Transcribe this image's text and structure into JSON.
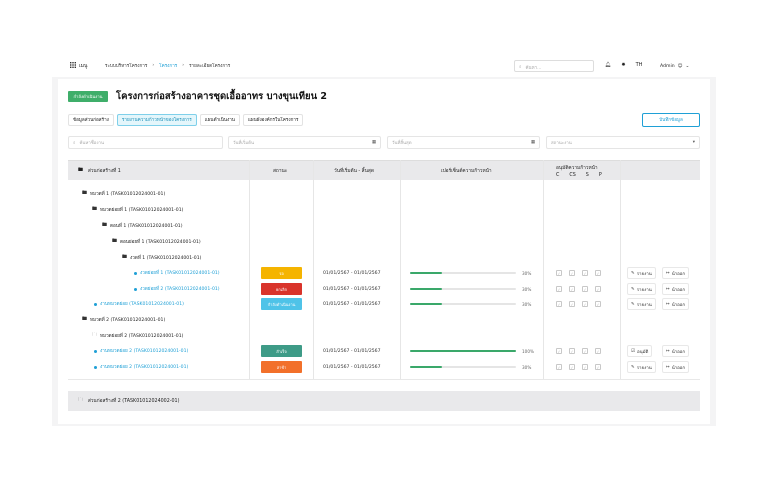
{
  "nav": {
    "menu_label": "เมนู",
    "breadcrumbs": [
      "ระบบบริหารโครงการ",
      "โครงการ",
      "รายละเอียดโครงการ"
    ],
    "search_placeholder": "ค้นหา...",
    "lang": "TH",
    "user": "Admin"
  },
  "header": {
    "status": "กำลังดำเนินงาน",
    "title": "โครงการก่อสร้างอาคารชุดเอื้ออาทร บางขุนเทียน 2",
    "tabs": [
      "ข้อมูลส่วนก่อสร้าง",
      "รายงานความก้าวหน้าของโครงการ",
      "แผนดำเนินงาน",
      "แผนผังองค์กรในโครงการ"
    ],
    "active_tab": 1,
    "save_label": "บันทึกข้อมูล"
  },
  "filters": {
    "search_placeholder": "ค้นหาชื่องาน",
    "start_placeholder": "วันที่เริ่มต้น",
    "end_placeholder": "วันที่สิ้นสุด",
    "status_placeholder": "สถานะงาน"
  },
  "table": {
    "section1": "ส่วนก่อสร้างที่ 1",
    "columns": {
      "status": "สถานะ",
      "dates": "วันที่เริ่มต้น - สิ้นสุด",
      "progress": "เปอร์เซ็นต์ความก้าวหน้า",
      "approval": "อนุมัติความก้าวหน้า",
      "approval_sub": [
        "C",
        "CS",
        "S",
        "P"
      ]
    },
    "rows": [
      {
        "label": "หมวดที่ 1 (TASK01012024001-01)",
        "kind": "group"
      },
      {
        "label": "หมวดย่อยที่ 1 (TASK01012024001-01)",
        "kind": "group"
      },
      {
        "label": "ตอนที่ 1 (TASK01012024001-01)",
        "kind": "group"
      },
      {
        "label": "ตอนย่อยที่ 1 (TASK01012024001-01)",
        "kind": "group"
      },
      {
        "label": "งวดที่ 1 (TASK01012024001-01)",
        "kind": "group"
      },
      {
        "label": "งวดย่อยที่ 1 (TASK01012024001-01)",
        "kind": "task",
        "status": "รอ",
        "status_color": "#f5b400",
        "dates": "01/01/2567 - 01/01/2567",
        "progress": 30,
        "progress_label": "30%",
        "actions": [
          "รายงาน",
          "นำออก"
        ]
      },
      {
        "label": "งวดย่อยที่ 2 (TASK01012024001-01)",
        "kind": "task",
        "status": "ยกเลิก",
        "status_color": "#d9342b",
        "dates": "01/01/2567 - 01/01/2567",
        "progress": 30,
        "progress_label": "30%",
        "actions": [
          "รายงาน",
          "นำออก"
        ]
      },
      {
        "label": "งานหมวดย่อย (TASK01012024001-01)",
        "kind": "task",
        "status": "กำลังดำเนินงาน",
        "status_color": "#4fc3e8",
        "dates": "01/01/2567 - 01/01/2567",
        "progress": 30,
        "progress_label": "30%",
        "actions": [
          "รายงาน",
          "นำออก"
        ]
      },
      {
        "label": "หมวดที่ 2 (TASK01012024001-01)",
        "kind": "group"
      },
      {
        "label": "หมวดย่อยที่ 2 (TASK01012024001-01)",
        "kind": "group"
      },
      {
        "label": "งานหมวดย่อย 2 (TASK01012024001-01)",
        "kind": "task",
        "status": "สำเร็จ",
        "status_color": "#3e9b87",
        "dates": "01/01/2567 - 01/01/2567",
        "progress": 100,
        "progress_label": "100%",
        "actions": [
          "อนุมัติ",
          "นำออก"
        ]
      },
      {
        "label": "งานหมวดย่อย 2 (TASK01012024001-01)",
        "kind": "task",
        "status": "ล่าช้า",
        "status_color": "#f2702a",
        "dates": "01/01/2567 - 01/01/2567",
        "progress": 30,
        "progress_label": "30%",
        "actions": [
          "รายงาน",
          "นำออก"
        ]
      }
    ],
    "section2": "ส่วนก่อสร้างที่ 2 (TASK01012024002-01)"
  }
}
